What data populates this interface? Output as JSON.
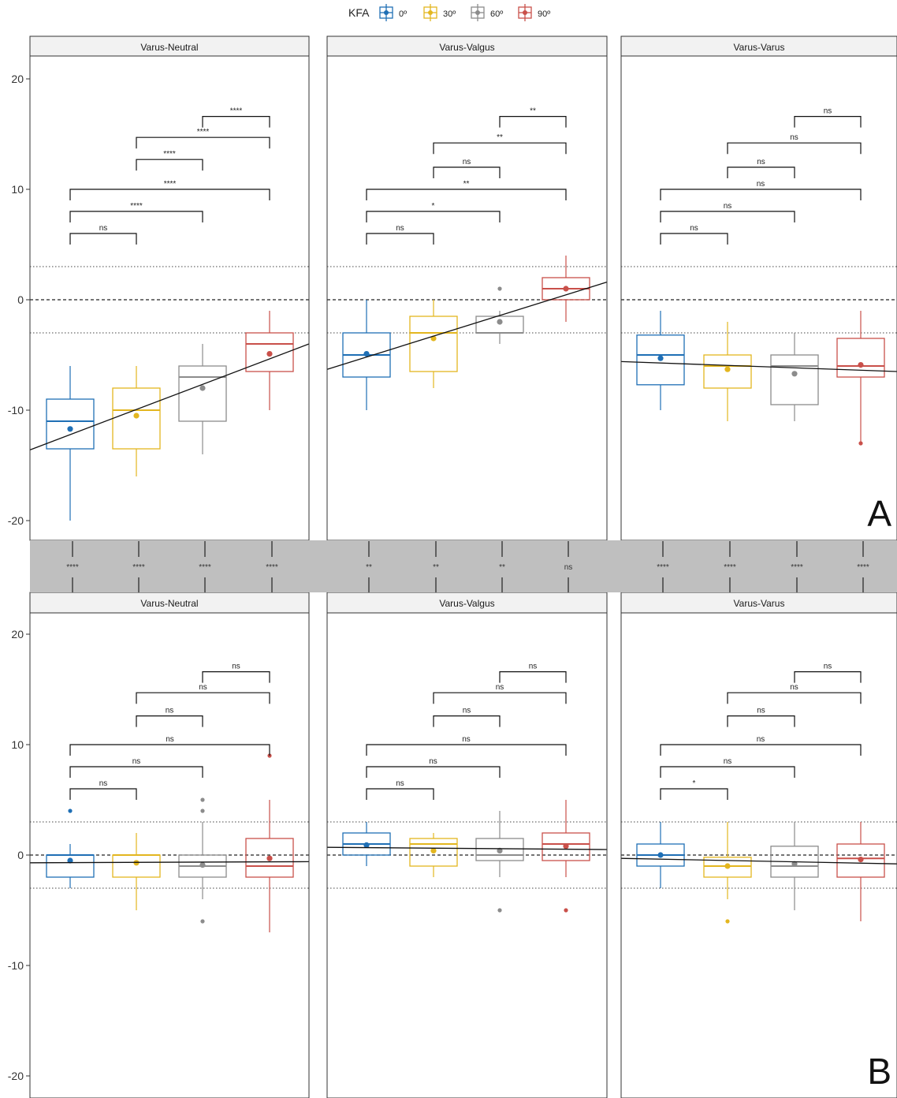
{
  "legend": {
    "title": "KFA",
    "items": [
      {
        "label": "0º",
        "color": "#1f6fb5"
      },
      {
        "label": "30º",
        "color": "#e3b61f"
      },
      {
        "label": "60º",
        "color": "#8c8c8c"
      },
      {
        "label": "90º",
        "color": "#c9504a"
      }
    ]
  },
  "panel_letters": [
    "A",
    "B"
  ],
  "chart_data": [
    {
      "type": "box",
      "facets": [
        {
          "title": "Varus-Neutral",
          "boxes": [
            {
              "q1": -13.5,
              "median": -11,
              "q3": -9,
              "lo": -20,
              "hi": -6,
              "mean": -11.7,
              "outliers": []
            },
            {
              "q1": -13.5,
              "median": -10,
              "q3": -8,
              "lo": -16,
              "hi": -6,
              "mean": -10.5,
              "outliers": []
            },
            {
              "q1": -11,
              "median": -7,
              "q3": -6,
              "lo": -14,
              "hi": -4,
              "mean": -8,
              "outliers": []
            },
            {
              "q1": -6.5,
              "median": -4,
              "q3": -3,
              "lo": -10,
              "hi": -1,
              "mean": -4.9,
              "outliers": []
            }
          ],
          "trend": [
            -13.6,
            -4
          ],
          "brackets": [
            {
              "from": 2,
              "to": 3,
              "y": 16.6,
              "label": "****"
            },
            {
              "from": 1,
              "to": 3,
              "y": 14.7,
              "label": "****"
            },
            {
              "from": 1,
              "to": 2,
              "y": 12.7,
              "label": "****"
            },
            {
              "from": 0,
              "to": 3,
              "y": 10,
              "label": "****"
            },
            {
              "from": 0,
              "to": 2,
              "y": 8,
              "label": "****"
            },
            {
              "from": 0,
              "to": 1,
              "y": 6,
              "label": "ns"
            }
          ]
        },
        {
          "title": "Varus-Valgus",
          "boxes": [
            {
              "q1": -7,
              "median": -5,
              "q3": -3,
              "lo": -10,
              "hi": 0,
              "mean": -4.9,
              "outliers": []
            },
            {
              "q1": -6.5,
              "median": -3,
              "q3": -1.5,
              "lo": -8,
              "hi": 0,
              "mean": -3.5,
              "outliers": []
            },
            {
              "q1": -3,
              "median": -3,
              "q3": -1.5,
              "lo": -4,
              "hi": -1,
              "mean": -2,
              "outliers": [
                1
              ]
            },
            {
              "q1": 0,
              "median": 1,
              "q3": 2,
              "lo": -2,
              "hi": 4,
              "mean": 1,
              "outliers": []
            }
          ],
          "trend": [
            -6.3,
            1.6
          ],
          "brackets": [
            {
              "from": 2,
              "to": 3,
              "y": 16.6,
              "label": "**"
            },
            {
              "from": 1,
              "to": 3,
              "y": 14.2,
              "label": "**"
            },
            {
              "from": 1,
              "to": 2,
              "y": 12,
              "label": "ns"
            },
            {
              "from": 0,
              "to": 3,
              "y": 10,
              "label": "**"
            },
            {
              "from": 0,
              "to": 2,
              "y": 8,
              "label": "*"
            },
            {
              "from": 0,
              "to": 1,
              "y": 6,
              "label": "ns"
            }
          ]
        },
        {
          "title": "Varus-Varus",
          "boxes": [
            {
              "q1": -7.7,
              "median": -5,
              "q3": -3.2,
              "lo": -10,
              "hi": -1,
              "mean": -5.3,
              "outliers": []
            },
            {
              "q1": -8,
              "median": -6,
              "q3": -5,
              "lo": -11,
              "hi": -2,
              "mean": -6.3,
              "outliers": []
            },
            {
              "q1": -9.5,
              "median": -6,
              "q3": -5,
              "lo": -11,
              "hi": -3,
              "mean": -6.7,
              "outliers": []
            },
            {
              "q1": -7,
              "median": -6,
              "q3": -3.5,
              "lo": -13,
              "hi": -1,
              "mean": -5.9,
              "outliers": [
                -13
              ]
            }
          ],
          "trend": [
            -5.6,
            -6.5
          ],
          "brackets": [
            {
              "from": 2,
              "to": 3,
              "y": 16.6,
              "label": "ns"
            },
            {
              "from": 1,
              "to": 3,
              "y": 14.2,
              "label": "ns"
            },
            {
              "from": 1,
              "to": 2,
              "y": 12,
              "label": "ns"
            },
            {
              "from": 0,
              "to": 3,
              "y": 10,
              "label": "ns"
            },
            {
              "from": 0,
              "to": 2,
              "y": 8,
              "label": "ns"
            },
            {
              "from": 0,
              "to": 1,
              "y": 6,
              "label": "ns"
            }
          ]
        }
      ],
      "ylim": [
        -21.7,
        22
      ],
      "yticks": [
        -20,
        -10,
        0,
        10,
        20
      ],
      "dashed_line": 0,
      "dotted_lines": [
        -3,
        3
      ]
    },
    {
      "type": "box",
      "facets": [
        {
          "title": "Varus-Neutral",
          "boxes": [
            {
              "q1": -2,
              "median": 0,
              "q3": 0,
              "lo": -3,
              "hi": 1,
              "mean": -0.5,
              "outliers": [
                4
              ]
            },
            {
              "q1": -2,
              "median": 0,
              "q3": 0,
              "lo": -5,
              "hi": 2,
              "mean": -0.7,
              "outliers": []
            },
            {
              "q1": -2,
              "median": -1,
              "q3": 0,
              "lo": -4,
              "hi": 3,
              "mean": -0.9,
              "outliers": [
                -6,
                4,
                5
              ]
            },
            {
              "q1": -2,
              "median": -1,
              "q3": 1.5,
              "lo": -7,
              "hi": 5,
              "mean": -0.3,
              "outliers": [
                9
              ]
            }
          ],
          "trend": [
            -0.7,
            -0.6
          ],
          "brackets": [
            {
              "from": 2,
              "to": 3,
              "y": 16.6,
              "label": "ns"
            },
            {
              "from": 1,
              "to": 3,
              "y": 14.7,
              "label": "ns"
            },
            {
              "from": 1,
              "to": 2,
              "y": 12.6,
              "label": "ns"
            },
            {
              "from": 0,
              "to": 3,
              "y": 10,
              "label": "ns"
            },
            {
              "from": 0,
              "to": 2,
              "y": 8,
              "label": "ns"
            },
            {
              "from": 0,
              "to": 1,
              "y": 6,
              "label": "ns"
            }
          ]
        },
        {
          "title": "Varus-Valgus",
          "boxes": [
            {
              "q1": 0,
              "median": 1,
              "q3": 2,
              "lo": -1,
              "hi": 3,
              "mean": 0.9,
              "outliers": []
            },
            {
              "q1": -1,
              "median": 1,
              "q3": 1.5,
              "lo": -2,
              "hi": 2,
              "mean": 0.4,
              "outliers": []
            },
            {
              "q1": -0.5,
              "median": 0,
              "q3": 1.5,
              "lo": -2,
              "hi": 4,
              "mean": 0.4,
              "outliers": [
                -5
              ]
            },
            {
              "q1": -0.5,
              "median": 1,
              "q3": 2,
              "lo": -2,
              "hi": 5,
              "mean": 0.8,
              "outliers": [
                -5
              ]
            }
          ],
          "trend": [
            0.7,
            0.5
          ],
          "brackets": [
            {
              "from": 2,
              "to": 3,
              "y": 16.6,
              "label": "ns"
            },
            {
              "from": 1,
              "to": 3,
              "y": 14.7,
              "label": "ns"
            },
            {
              "from": 1,
              "to": 2,
              "y": 12.6,
              "label": "ns"
            },
            {
              "from": 0,
              "to": 3,
              "y": 10,
              "label": "ns"
            },
            {
              "from": 0,
              "to": 2,
              "y": 8,
              "label": "ns"
            },
            {
              "from": 0,
              "to": 1,
              "y": 6,
              "label": "ns"
            }
          ]
        },
        {
          "title": "Varus-Varus",
          "boxes": [
            {
              "q1": -1,
              "median": 0,
              "q3": 1,
              "lo": -3,
              "hi": 3,
              "mean": 0,
              "outliers": []
            },
            {
              "q1": -2,
              "median": -1,
              "q3": -0.2,
              "lo": -4,
              "hi": 3,
              "mean": -1,
              "outliers": [
                -6
              ]
            },
            {
              "q1": -2,
              "median": -1,
              "q3": 0.8,
              "lo": -5,
              "hi": 3,
              "mean": -0.8,
              "outliers": []
            },
            {
              "q1": -2,
              "median": -0.3,
              "q3": 1,
              "lo": -6,
              "hi": 3,
              "mean": -0.4,
              "outliers": []
            }
          ],
          "trend": [
            -0.3,
            -0.8
          ],
          "brackets": [
            {
              "from": 2,
              "to": 3,
              "y": 16.6,
              "label": "ns"
            },
            {
              "from": 1,
              "to": 3,
              "y": 14.7,
              "label": "ns"
            },
            {
              "from": 1,
              "to": 2,
              "y": 12.6,
              "label": "ns"
            },
            {
              "from": 0,
              "to": 3,
              "y": 10,
              "label": "ns"
            },
            {
              "from": 0,
              "to": 2,
              "y": 8,
              "label": "ns"
            },
            {
              "from": 0,
              "to": 1,
              "y": 6,
              "label": "*"
            }
          ]
        }
      ],
      "ylim": [
        -21.7,
        22
      ],
      "yticks": [
        -20,
        -10,
        0,
        10,
        20
      ],
      "dashed_line": 0,
      "dotted_lines": [
        -3,
        3
      ]
    }
  ],
  "connectors": [
    [
      "****",
      "****",
      "****",
      "****"
    ],
    [
      "**",
      "**",
      "**",
      "ns"
    ],
    [
      "****",
      "****",
      "****",
      "****"
    ]
  ]
}
